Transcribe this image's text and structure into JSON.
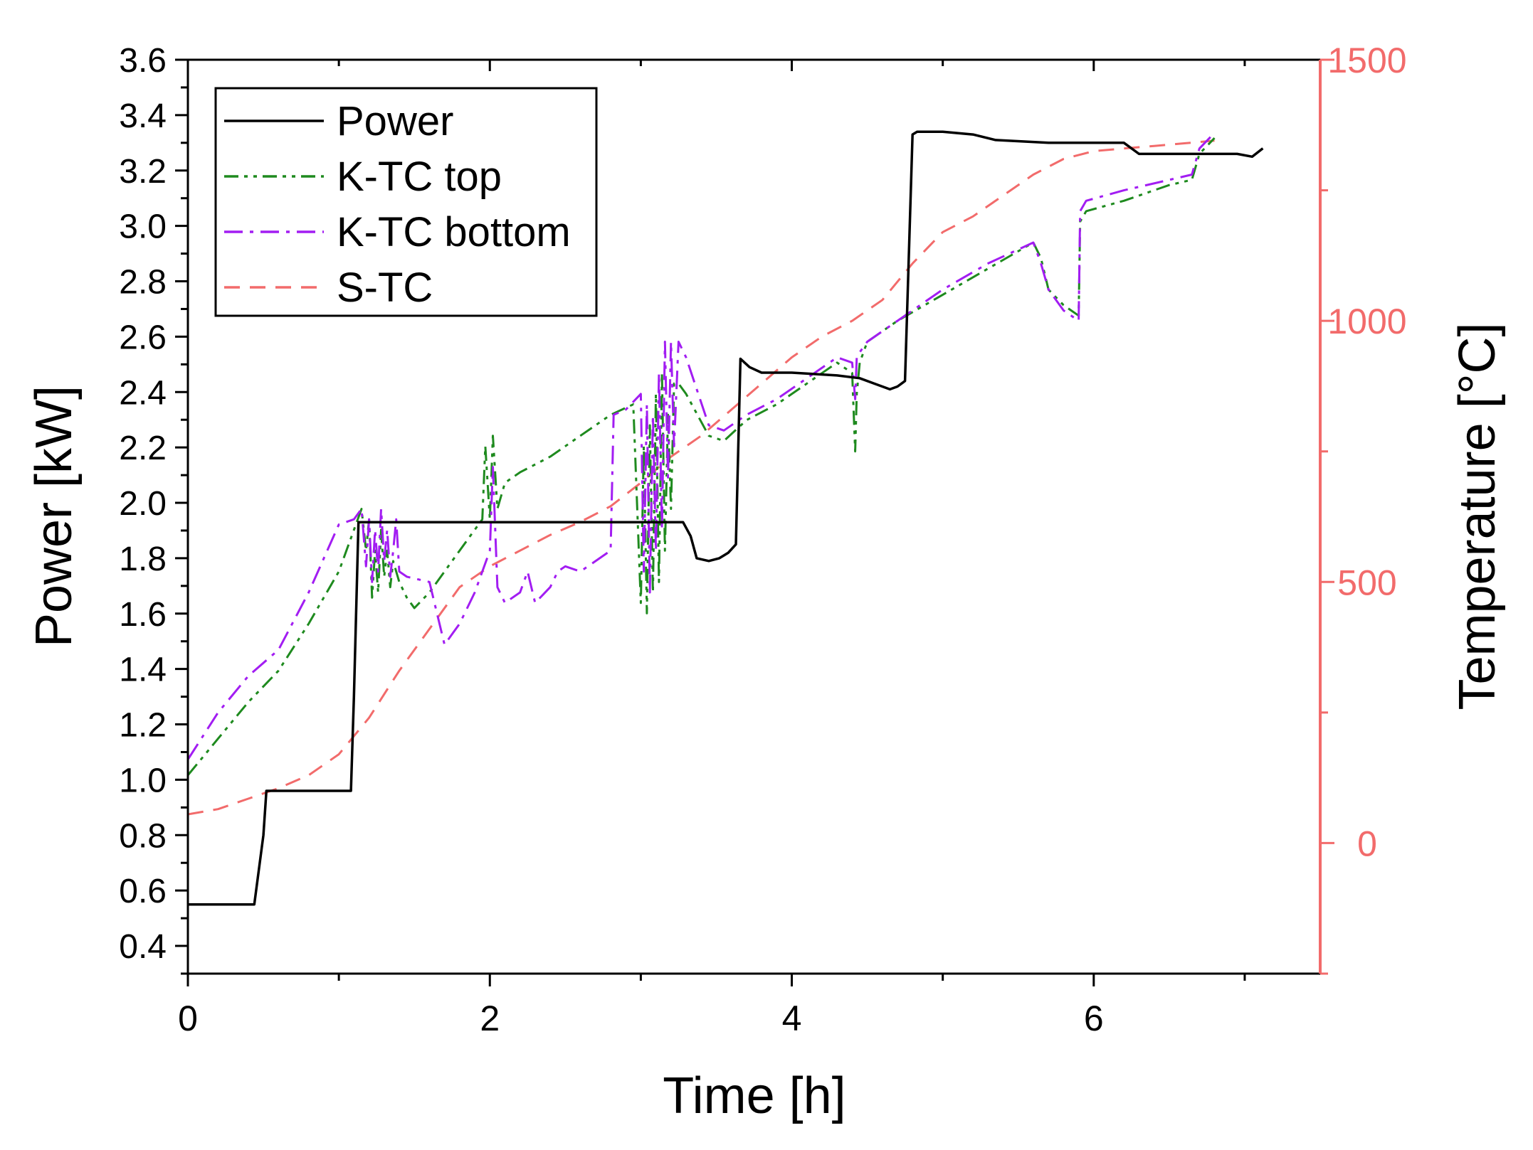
{
  "chart_data": {
    "type": "line",
    "title": "",
    "xlabel": "Time [h]",
    "ylabel": "Power [kW]",
    "y2label": "Temperature [°C]",
    "xlim": [
      0,
      7.5
    ],
    "ylim": [
      0.3,
      3.6
    ],
    "y2lim": [
      -250,
      1500
    ],
    "x_ticks": [
      "0",
      "2",
      "4",
      "6"
    ],
    "x_tick_values": [
      0,
      2,
      4,
      6
    ],
    "y_ticks": [
      "0.4",
      "0.6",
      "0.8",
      "1.0",
      "1.2",
      "1.4",
      "1.6",
      "1.8",
      "2.0",
      "2.2",
      "2.4",
      "2.6",
      "2.8",
      "3.0",
      "3.2",
      "3.4",
      "3.6"
    ],
    "y_tick_values": [
      0.4,
      0.6,
      0.8,
      1.0,
      1.2,
      1.4,
      1.6,
      1.8,
      2.0,
      2.2,
      2.4,
      2.6,
      2.8,
      3.0,
      3.2,
      3.4,
      3.6
    ],
    "y2_ticks": [
      "0",
      "500",
      "1000",
      "1500"
    ],
    "y2_tick_values": [
      0,
      500,
      1000,
      1500
    ],
    "grid": false,
    "legend_position": "top-left",
    "axis_colors": {
      "left": "#000000",
      "right": "#f26b6b"
    },
    "series": [
      {
        "name": "Power",
        "axis": "left",
        "color": "#000000",
        "dash": "solid",
        "x": [
          0,
          0.44,
          0.5,
          0.52,
          1.08,
          1.1,
          1.13,
          1.5,
          2.0,
          2.5,
          3.0,
          3.28,
          3.33,
          3.37,
          3.45,
          3.52,
          3.58,
          3.63,
          3.66,
          3.72,
          3.8,
          4.0,
          4.3,
          4.45,
          4.55,
          4.65,
          4.7,
          4.75,
          4.8,
          4.83,
          5.0,
          5.2,
          5.35,
          5.7,
          6.2,
          6.3,
          6.85,
          6.95,
          7.05,
          7.12
        ],
        "y": [
          0.55,
          0.55,
          0.8,
          0.96,
          0.96,
          1.3,
          1.93,
          1.93,
          1.93,
          1.93,
          1.93,
          1.93,
          1.88,
          1.8,
          1.79,
          1.8,
          1.82,
          1.85,
          2.52,
          2.49,
          2.47,
          2.47,
          2.46,
          2.45,
          2.43,
          2.41,
          2.42,
          2.44,
          3.33,
          3.34,
          3.34,
          3.33,
          3.31,
          3.3,
          3.3,
          3.26,
          3.26,
          3.26,
          3.25,
          3.28
        ]
      },
      {
        "name": "K-TC top",
        "axis": "right",
        "color": "#1e8a1e",
        "dash": "dashdotdot",
        "x": [
          0,
          0.2,
          0.4,
          0.6,
          0.8,
          1.0,
          1.15,
          1.18,
          1.2,
          1.22,
          1.24,
          1.26,
          1.28,
          1.3,
          1.32,
          1.34,
          1.36,
          1.38,
          1.4,
          1.45,
          1.5,
          1.6,
          1.8,
          1.95,
          1.97,
          2.0,
          2.02,
          2.05,
          2.1,
          2.2,
          2.4,
          2.6,
          2.8,
          2.95,
          3.0,
          3.02,
          3.04,
          3.06,
          3.08,
          3.1,
          3.12,
          3.14,
          3.16,
          3.18,
          3.2,
          3.22,
          3.25,
          3.3,
          3.45,
          3.55,
          3.7,
          3.9,
          4.1,
          4.3,
          4.4,
          4.42,
          4.43,
          4.45,
          4.5,
          4.7,
          5.0,
          5.3,
          5.6,
          5.65,
          5.7,
          5.8,
          5.9,
          5.91,
          5.95,
          6.2,
          6.5,
          6.65,
          6.7,
          6.8
        ],
        "y": [
          130,
          200,
          270,
          330,
          420,
          520,
          640,
          560,
          620,
          470,
          560,
          480,
          600,
          510,
          560,
          490,
          540,
          520,
          500,
          470,
          450,
          480,
          560,
          620,
          760,
          620,
          780,
          640,
          690,
          710,
          740,
          780,
          820,
          840,
          460,
          760,
          440,
          800,
          480,
          860,
          500,
          900,
          560,
          820,
          640,
          880,
          880,
          860,
          780,
          770,
          810,
          840,
          880,
          920,
          900,
          750,
          860,
          920,
          960,
          1000,
          1050,
          1100,
          1150,
          1120,
          1060,
          1030,
          1010,
          1190,
          1210,
          1230,
          1260,
          1270,
          1320,
          1350
        ]
      },
      {
        "name": "K-TC bottom",
        "axis": "right",
        "color": "#a21df2",
        "dash": "dashdot",
        "x": [
          0,
          0.2,
          0.4,
          0.6,
          0.8,
          1.0,
          1.1,
          1.15,
          1.18,
          1.2,
          1.22,
          1.24,
          1.26,
          1.28,
          1.3,
          1.32,
          1.34,
          1.36,
          1.38,
          1.4,
          1.45,
          1.6,
          1.7,
          1.8,
          1.9,
          1.95,
          2.0,
          2.02,
          2.05,
          2.1,
          2.2,
          2.25,
          2.3,
          2.4,
          2.45,
          2.5,
          2.6,
          2.8,
          2.82,
          2.9,
          3.0,
          3.02,
          3.04,
          3.06,
          3.08,
          3.1,
          3.12,
          3.14,
          3.16,
          3.18,
          3.2,
          3.22,
          3.25,
          3.3,
          3.45,
          3.55,
          3.7,
          3.9,
          4.1,
          4.3,
          4.4,
          4.42,
          4.43,
          4.45,
          4.5,
          4.7,
          5.0,
          5.3,
          5.6,
          5.65,
          5.7,
          5.8,
          5.9,
          5.91,
          5.95,
          6.2,
          6.5,
          6.65,
          6.7,
          6.8
        ],
        "y": [
          160,
          250,
          320,
          370,
          480,
          610,
          620,
          640,
          530,
          620,
          500,
          600,
          520,
          640,
          540,
          600,
          510,
          560,
          620,
          520,
          510,
          500,
          380,
          420,
          480,
          520,
          560,
          720,
          490,
          460,
          480,
          520,
          460,
          490,
          520,
          530,
          520,
          560,
          820,
          830,
          860,
          520,
          840,
          480,
          820,
          560,
          900,
          600,
          960,
          700,
          960,
          760,
          960,
          930,
          800,
          790,
          820,
          850,
          890,
          930,
          920,
          850,
          930,
          940,
          960,
          1000,
          1060,
          1110,
          1150,
          1110,
          1060,
          1020,
          1000,
          1210,
          1230,
          1250,
          1270,
          1280,
          1330,
          1360
        ]
      },
      {
        "name": "S-TC",
        "axis": "right",
        "color": "#f26b6b",
        "dash": "dashed",
        "x": [
          0,
          0.2,
          0.4,
          0.6,
          0.8,
          1.0,
          1.2,
          1.4,
          1.6,
          1.8,
          2.0,
          2.2,
          2.4,
          2.6,
          2.8,
          3.0,
          3.2,
          3.4,
          3.6,
          3.8,
          4.0,
          4.2,
          4.4,
          4.6,
          4.8,
          5.0,
          5.2,
          5.4,
          5.6,
          5.8,
          6.0,
          6.2,
          6.4,
          6.6,
          6.8
        ],
        "y": [
          55,
          65,
          85,
          105,
          130,
          170,
          240,
          330,
          410,
          490,
          530,
          560,
          590,
          615,
          645,
          690,
          740,
          780,
          830,
          880,
          930,
          970,
          1000,
          1040,
          1110,
          1170,
          1200,
          1240,
          1280,
          1310,
          1325,
          1330,
          1335,
          1340,
          1345
        ]
      }
    ]
  }
}
